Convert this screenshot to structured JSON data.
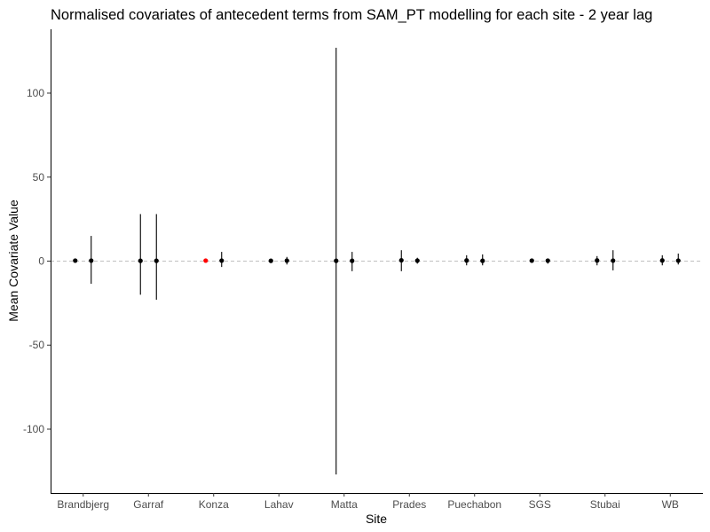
{
  "chart_data": {
    "type": "scatter",
    "title": "Normalised covariates of antecedent terms from SAM_PT modelling for each site - 2 year lag",
    "xlabel": "Site",
    "ylabel": "Mean Covariate Value",
    "categories": [
      "Brandbjerg",
      "Garraf",
      "Konza",
      "Lahav",
      "Matta",
      "Prades",
      "Puechabon",
      "SGS",
      "Stubai",
      "WB"
    ],
    "ylim": [
      -138,
      138
    ],
    "yticks": [
      -100,
      -50,
      0,
      50,
      100
    ],
    "reference_line": {
      "y": 0,
      "style": "dashed"
    },
    "grid": false,
    "legend": "none",
    "colors": {
      "point": "#000000",
      "highlight": "#ff0000",
      "reference": "#c0c0c0"
    },
    "series": [
      {
        "values": [
          0.3,
          0.2,
          0.3,
          0.2,
          0.2,
          0.5,
          0.4,
          0.3,
          0.4,
          0.4
        ],
        "lower": [
          -0.5,
          -20,
          -0.4,
          -0.4,
          -127,
          -6,
          -2.5,
          -1,
          -2.5,
          -2.5
        ],
        "upper": [
          1.0,
          28,
          1.0,
          0.8,
          127,
          6.5,
          3.5,
          1.5,
          3.0,
          3.5
        ],
        "highlight_index": 2
      },
      {
        "values": [
          0.3,
          0.2,
          0.3,
          0.3,
          0.2,
          0.3,
          0.2,
          0.3,
          0.3,
          0.3
        ],
        "lower": [
          -13.5,
          -23,
          -3.5,
          -2,
          -6,
          -1.5,
          -2.5,
          -1.5,
          -5.5,
          -2
        ],
        "upper": [
          15,
          28,
          5.5,
          2.5,
          5.5,
          2.0,
          4.0,
          1.5,
          6.5,
          4.5
        ]
      }
    ]
  }
}
